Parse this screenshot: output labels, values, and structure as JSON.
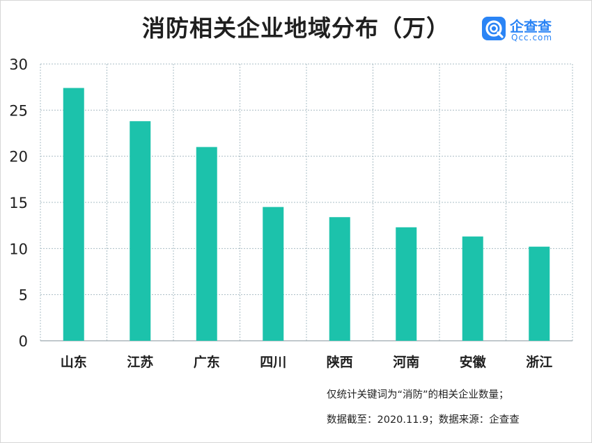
{
  "header": {
    "title": "消防相关企业地域分布（万）"
  },
  "logo": {
    "name": "企查查",
    "url_text": "Qcc.com",
    "icon": "qcc-logo-icon",
    "color": "#2a84f5"
  },
  "notes": {
    "line1": "仅统计关键词为“消防”的相关企业数量；",
    "date_label": "数据截至：",
    "date_value": "2020.11.9",
    "separator": "；",
    "source_label": "数据来源：",
    "source_value": "企查查"
  },
  "chart_data": {
    "type": "bar",
    "title": "消防相关企业地域分布（万）",
    "categories": [
      "山东",
      "江苏",
      "广东",
      "四川",
      "陕西",
      "河南",
      "安徽",
      "浙江"
    ],
    "values": [
      27.4,
      23.8,
      21.0,
      14.5,
      13.4,
      12.3,
      11.3,
      10.2
    ],
    "ylim": [
      0,
      30
    ],
    "yticks": [
      0,
      5,
      10,
      15,
      20,
      25,
      30
    ],
    "xlabel": "",
    "ylabel": "",
    "grid": true,
    "bar_color": "#1cc2ab",
    "grid_color": "#a9bcc4"
  }
}
